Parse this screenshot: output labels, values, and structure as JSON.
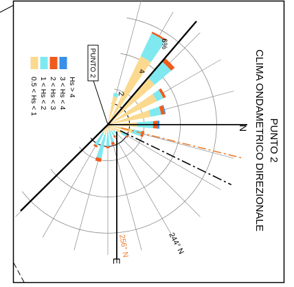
{
  "chart_data": {
    "type": "rose",
    "title": "PUNTO 2",
    "subtitle": "CLIMA ONDAMETRICO DIREZIONALE",
    "station_label": "PUNTO 2",
    "north_label": "N",
    "east_label": "E",
    "radius_unit": "%",
    "ring_labels": [
      "2",
      "4",
      "6%"
    ],
    "ring_values": [
      2,
      4,
      6
    ],
    "rmax": 7.2,
    "reference_lines": [
      {
        "label": "244° N",
        "bearing": 244
      },
      {
        "label": "256° N",
        "bearing": 256
      }
    ],
    "legend": [
      {
        "label": "0.5 < Hs < 1",
        "color": "#fbd98e"
      },
      {
        "label": "1 < Hs < 2",
        "color": "#7fe9ef"
      },
      {
        "label": "2 < Hs < 3",
        "color": "#f05a1e"
      },
      {
        "label": "3 < Hs < 4",
        "color": "#3a8fe8"
      },
      {
        "label": "Hs > 4",
        "color": "#f05a1e"
      }
    ],
    "sectors": [
      {
        "bearing": 15,
        "values": [
          1.6,
          0.2,
          0.0,
          0.0,
          0.0
        ]
      },
      {
        "bearing": 30,
        "values": [
          4.2,
          1.4,
          0.1,
          0.0,
          0.0
        ]
      },
      {
        "bearing": 45,
        "values": [
          3.4,
          1.2,
          0.25,
          0.0,
          0.0
        ]
      },
      {
        "bearing": 60,
        "values": [
          3.0,
          0.4,
          0.15,
          0.0,
          0.0
        ]
      },
      {
        "bearing": 75,
        "values": [
          2.4,
          0.6,
          0.2,
          0.05,
          0.0
        ]
      },
      {
        "bearing": 90,
        "values": [
          1.6,
          0.9,
          0.25,
          0.1,
          0.0
        ]
      },
      {
        "bearing": 105,
        "values": [
          1.4,
          0.5,
          0.15,
          0.0,
          0.0
        ]
      },
      {
        "bearing": 120,
        "values": [
          0.9,
          0.3,
          0.1,
          0.0,
          0.0
        ]
      },
      {
        "bearing": 135,
        "values": [
          0.5,
          0.2,
          0.0,
          0.0,
          0.0
        ]
      },
      {
        "bearing": 150,
        "values": [
          0.4,
          0.3,
          0.1,
          0.0,
          0.0
        ]
      },
      {
        "bearing": 165,
        "values": [
          0.3,
          0.7,
          0.15,
          0.0,
          0.0
        ]
      },
      {
        "bearing": 180,
        "values": [
          0.4,
          0.8,
          0.1,
          0.0,
          0.0
        ]
      },
      {
        "bearing": 195,
        "values": [
          0.6,
          1.3,
          0.2,
          0.0,
          0.0
        ]
      },
      {
        "bearing": 210,
        "values": [
          0.5,
          0.8,
          0.1,
          0.0,
          0.0
        ]
      },
      {
        "bearing": 225,
        "values": [
          0.2,
          0.3,
          0.05,
          0.0,
          0.0
        ]
      }
    ]
  }
}
